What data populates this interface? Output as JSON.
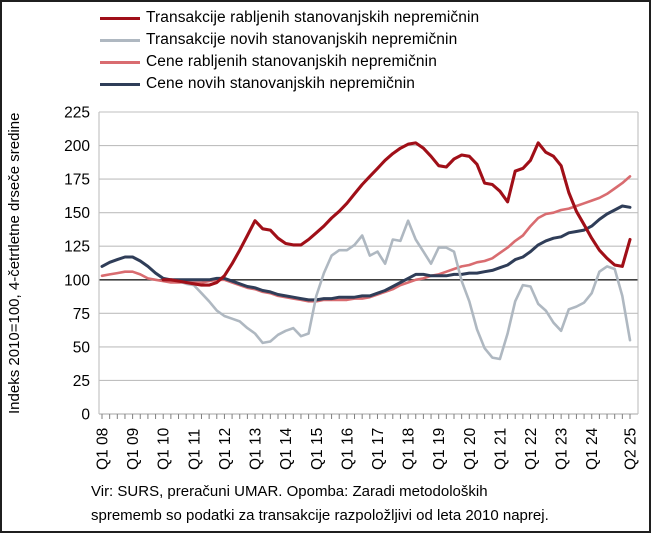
{
  "ylabel": "Indeks 2010=100, 4-četrtletne drseče sredine",
  "footer": {
    "line1": "Vir: SURS, preračuni UMAR. Opomba: Zaradi metodoloških",
    "line2": "sprememb so podatki za transakcije razpoložljivi od leta 2010 naprej."
  },
  "legend": {
    "items": [
      {
        "label": "Transakcije rabljenih stanovanjskih nepremičnin",
        "color": "#A00F18"
      },
      {
        "label": "Transakcije novih stanovanjskih nepremičnin",
        "color": "#AFB8C1"
      },
      {
        "label": "Cene rabljenih stanovanjskih nepremičnin",
        "color": "#D96C70"
      },
      {
        "label": "Cene novih stanovanjskih nepremičnin",
        "color": "#2F3D58"
      }
    ]
  },
  "colors": {
    "grid": "#BFBFBF",
    "axis_bottom": "#A6A6A6",
    "reference_line": "#404040",
    "tick_mark": "#7F7F7F",
    "tick_text": "#000000"
  },
  "chart_data": {
    "type": "line",
    "title": "",
    "xlabel": "",
    "ylabel": "Indeks 2010=100, 4-četrtletne drseče sredine",
    "ylim": [
      0,
      225
    ],
    "y_ticks": [
      0,
      25,
      50,
      75,
      100,
      125,
      150,
      175,
      200,
      225
    ],
    "reference_line": 100,
    "grid": true,
    "legend_position": "top-left",
    "quarters_total": 70,
    "x_start": "Q1 2008",
    "x_end": "Q2 2025",
    "x_tick_labels": [
      "Q1 08",
      "Q1 09",
      "Q1 10",
      "Q1 11",
      "Q1 12",
      "Q1 13",
      "Q1 14",
      "Q1 15",
      "Q1 16",
      "Q1 17",
      "Q1 18",
      "Q1 19",
      "Q1 20",
      "Q1 21",
      "Q1 22",
      "Q1 23",
      "Q1 24",
      "Q2 25"
    ],
    "x_tick_indices": [
      0,
      4,
      8,
      12,
      16,
      20,
      24,
      28,
      32,
      36,
      40,
      44,
      48,
      52,
      56,
      60,
      64,
      69
    ],
    "series": [
      {
        "name": "Cene rabljenih stanovanjskih nepremičnin",
        "key": "cene-rabljenih",
        "color": "#D96C70",
        "width": 2.6,
        "start_index": 0,
        "values": [
          103,
          104,
          105,
          106,
          106,
          104,
          101,
          100,
          99,
          98,
          98,
          98,
          98,
          98,
          99,
          100,
          100,
          98,
          96,
          94,
          93,
          91,
          90,
          88,
          87,
          86,
          85,
          84,
          84,
          85,
          85,
          85,
          85,
          86,
          86,
          87,
          89,
          91,
          93,
          96,
          98,
          100,
          101,
          103,
          104,
          106,
          108,
          110,
          111,
          113,
          114,
          116,
          120,
          124,
          129,
          133,
          140,
          146,
          149,
          150,
          152,
          153,
          155,
          157,
          159,
          161,
          164,
          168,
          172,
          177
        ]
      },
      {
        "name": "Cene novih stanovanjskih nepremičnin",
        "key": "cene-novih",
        "color": "#2F3D58",
        "width": 3,
        "start_index": 0,
        "values": [
          110,
          113,
          115,
          117,
          117,
          114,
          110,
          105,
          101,
          100,
          100,
          100,
          100,
          100,
          100,
          101,
          101,
          99,
          97,
          95,
          94,
          92,
          91,
          89,
          88,
          87,
          86,
          85,
          85,
          86,
          86,
          87,
          87,
          87,
          88,
          88,
          90,
          92,
          95,
          98,
          101,
          104,
          104,
          103,
          103,
          103,
          104,
          104,
          105,
          105,
          106,
          107,
          109,
          111,
          115,
          117,
          121,
          126,
          129,
          131,
          132,
          135,
          136,
          137,
          140,
          145,
          149,
          152,
          155,
          154
        ]
      },
      {
        "name": "Transakcije novih stanovanjskih nepremičnin",
        "key": "transakcije-novih",
        "color": "#AFB8C1",
        "width": 2.6,
        "start_index": 8,
        "values": [
          100,
          100,
          99,
          97,
          96,
          90,
          84,
          77,
          73,
          71,
          69,
          64,
          60,
          53,
          54,
          59,
          62,
          64,
          58,
          60,
          88,
          105,
          118,
          122,
          122,
          126,
          133,
          118,
          121,
          112,
          130,
          129,
          144,
          130,
          121,
          112,
          124,
          124,
          121,
          99,
          84,
          63,
          49,
          42,
          41,
          60,
          84,
          96,
          95,
          82,
          77,
          68,
          62,
          78,
          80,
          83,
          90,
          106,
          110,
          108,
          88,
          55
        ]
      },
      {
        "name": "Transakcije rabljenih stanovanjskih nepremičnin",
        "key": "transakcije-rabljenih",
        "color": "#A00F18",
        "width": 3.1,
        "start_index": 8,
        "values": [
          100,
          100,
          99,
          98,
          97,
          96,
          96,
          98,
          103,
          112,
          122,
          133,
          144,
          138,
          137,
          131,
          127,
          126,
          126,
          130,
          135,
          140,
          146,
          151,
          157,
          164,
          171,
          177,
          183,
          189,
          194,
          198,
          201,
          202,
          198,
          192,
          185,
          184,
          190,
          193,
          192,
          186,
          172,
          171,
          166,
          158,
          181,
          183,
          189,
          202,
          195,
          192,
          185,
          165,
          151,
          141,
          131,
          122,
          116,
          111,
          110,
          130
        ]
      }
    ]
  }
}
